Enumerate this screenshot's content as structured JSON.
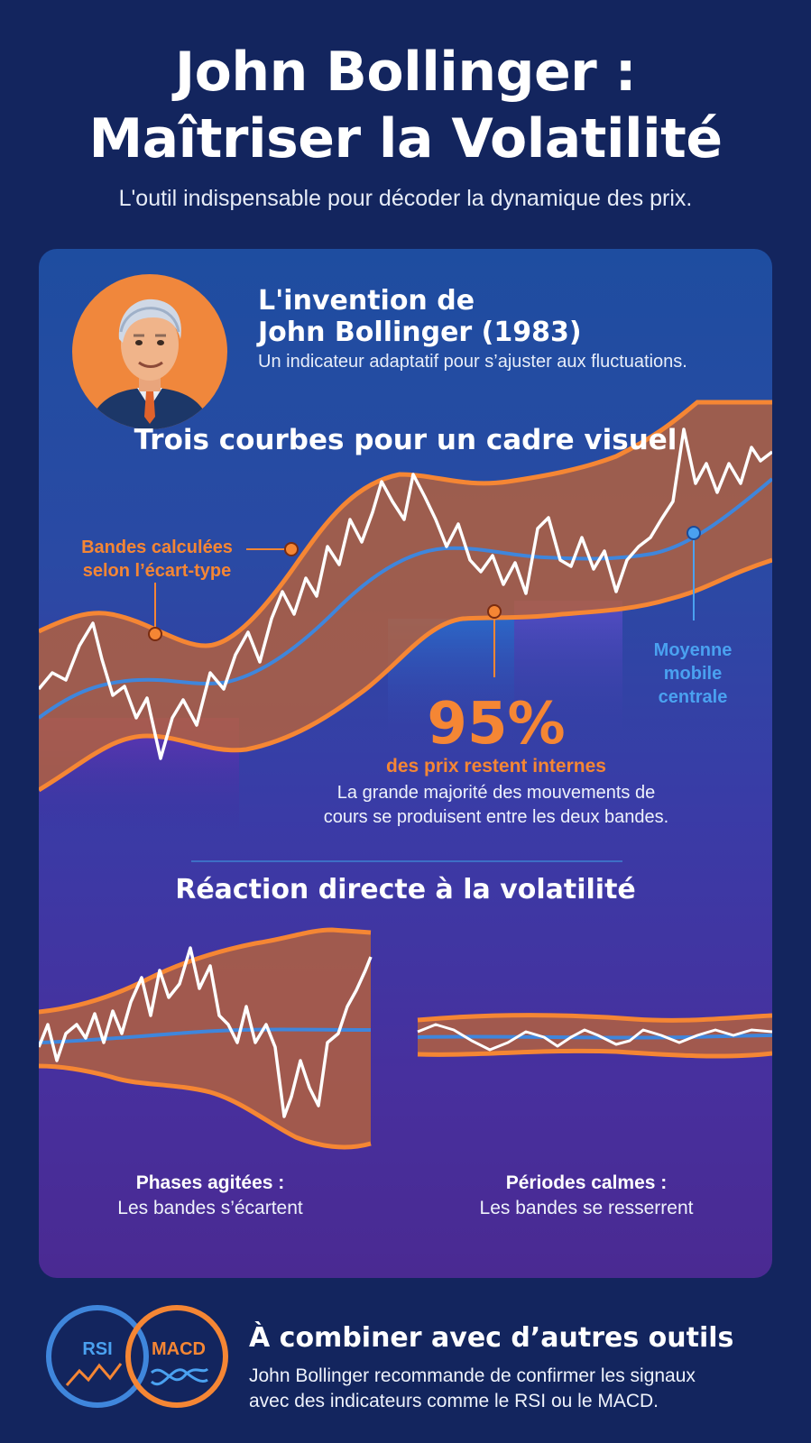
{
  "header": {
    "title_line1": "John Bollinger :",
    "title_line2": "Maîtriser la Volatilité",
    "subtitle": "L'outil indispensable pour décoder la dynamique des prix."
  },
  "invention": {
    "title_line1": "L'invention de",
    "title_line2": "John Bollinger (1983)",
    "subtitle": "Un indicateur adaptatif pour s’ajuster aux fluctuations."
  },
  "main_chart": {
    "section_title": "Trois courbes pour un cadre visuel",
    "bands_label_line1": "Bandes calculées",
    "bands_label_line2": "selon l’écart-type",
    "ma_label_line1": "Moyenne",
    "ma_label_line2": "mobile",
    "ma_label_line3": "centrale",
    "stat_value": "95%",
    "stat_label": "des prix restent internes",
    "stat_desc_line1": "La grande majorité des mouvements de",
    "stat_desc_line2": "cours se produisent entre les deux bandes."
  },
  "volatility": {
    "section_title": "Réaction directe à la volatilité",
    "agitated_title": "Phases agitées :",
    "agitated_text": "Les bandes s’écartent",
    "calm_title": "Périodes calmes :",
    "calm_text": "Les bandes se resserrent"
  },
  "combine": {
    "title": "À combiner avec d’autres outils",
    "desc_line1": "John Bollinger recommande de confirmer les signaux",
    "desc_line2": "avec des indicateurs comme le RSI ou le MACD.",
    "badge_rsi": "RSI",
    "badge_macd": "MACD"
  },
  "colors": {
    "background": "#13255e",
    "orange": "#f58634",
    "blue": "#4aa1f0",
    "band_fill": "#b2603f",
    "price_line": "#ffffff"
  }
}
